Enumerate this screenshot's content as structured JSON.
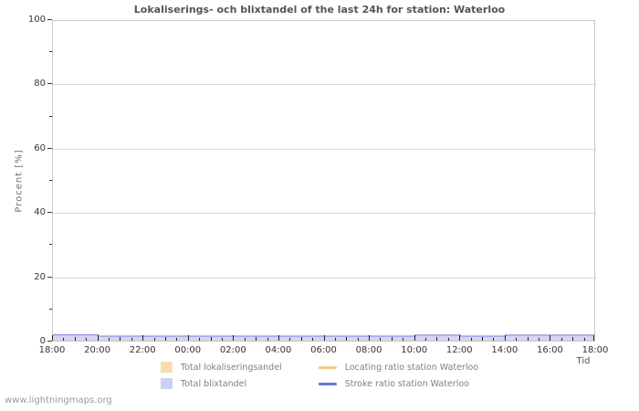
{
  "title": "Lokaliserings- och blixtandel of the last 24h for station: Waterloo",
  "watermark": "www.lightningmaps.org",
  "colors": {
    "title_text": "#555550",
    "axis_frame": "#c9c9c9",
    "gridline": "#d8d8d8",
    "tick": "#222222",
    "tick_label": "#333333",
    "legend_text": "#80807a",
    "blixtandel_fill": "#d3d6f4",
    "lokaliseringsandel_fill": "#f8dcab",
    "stroke_ratio_line": "#7a7dd8",
    "locating_ratio_line": "#f1cd86"
  },
  "chart_data": {
    "type": "area",
    "title": "Lokaliserings- och blixtandel of the last 24h for station: Waterloo",
    "xlabel": "Tid",
    "ylabel": "Procent  [%]",
    "ylim": [
      0,
      100
    ],
    "grid": "horizontal-major",
    "y_major_ticks": [
      0,
      20,
      40,
      60,
      80,
      100
    ],
    "y_minor_ticks": [
      10,
      30,
      50,
      70,
      90
    ],
    "x_tick_labels": [
      "18:00",
      "20:00",
      "22:00",
      "00:00",
      "02:00",
      "04:00",
      "06:00",
      "08:00",
      "10:00",
      "12:00",
      "14:00",
      "16:00",
      "18:00"
    ],
    "x_major_tick_interval_hours": 2,
    "x_minor_tick_interval_hours": 0.5,
    "x_span_hours": 24,
    "series": [
      {
        "name": "Total blixtandel",
        "type": "area",
        "color": "#d3d6f4",
        "values": [
          2.4,
          2.4,
          2.0,
          2.0,
          2.0,
          2.0,
          2.0,
          2.0,
          2.0,
          2.0,
          2.0,
          2.0,
          2.0,
          2.0,
          2.0,
          2.0,
          2.3,
          2.3,
          2.0,
          2.0,
          2.3,
          2.3,
          2.3,
          2.3,
          2.3
        ]
      },
      {
        "name": "Total lokaliseringsandel",
        "type": "area",
        "color": "#f8dcab",
        "values": [
          0.5,
          0.5,
          0.5,
          0.5,
          0.5,
          0.5,
          0.5,
          0.5,
          0.5,
          0.5,
          0.5,
          0.5,
          0.5,
          0.5,
          0.5,
          0.5,
          0.5,
          0.5,
          0.5,
          0.5,
          0.5,
          0.5,
          0.5,
          0.5,
          0.5
        ]
      },
      {
        "name": "Locating ratio station Waterloo",
        "type": "line",
        "color": "#f1cd86",
        "values": [
          0.5,
          0.5,
          0.5,
          0.5,
          0.5,
          0.5,
          0.5,
          0.5,
          0.5,
          0.5,
          0.5,
          0.5,
          0.5,
          0.5,
          0.5,
          0.5,
          0.5,
          0.5,
          0.5,
          0.5,
          0.5,
          0.5,
          0.5,
          0.5,
          0.5
        ]
      },
      {
        "name": "Stroke ratio station Waterloo",
        "type": "line",
        "color": "#7a7dd8",
        "values": [
          2.4,
          2.4,
          2.0,
          2.0,
          2.0,
          2.0,
          2.0,
          2.0,
          2.0,
          2.0,
          2.0,
          2.0,
          2.0,
          2.0,
          2.0,
          2.0,
          2.3,
          2.3,
          2.0,
          2.0,
          2.3,
          2.3,
          2.3,
          2.3,
          2.3
        ]
      }
    ],
    "legend": {
      "position": "bottom",
      "items": [
        {
          "label": "Total lokaliseringsandel",
          "swatch": "box",
          "color": "#f8dcab"
        },
        {
          "label": "Locating ratio station Waterloo",
          "swatch": "line",
          "color": "#f1cd86"
        },
        {
          "label": "Total blixtandel",
          "swatch": "box",
          "color": "#ccd0f2"
        },
        {
          "label": "Stroke ratio station Waterloo",
          "swatch": "line",
          "color": "#6f74d8"
        }
      ]
    }
  }
}
